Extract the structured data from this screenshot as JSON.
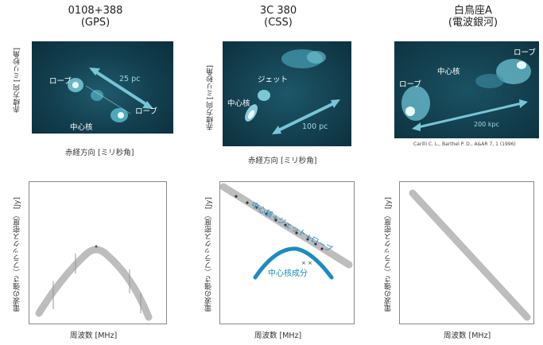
{
  "col1": {
    "name": "0108+388",
    "type": "(GPS)"
  },
  "col2": {
    "name": "3C 380",
    "type": "(CSS)"
  },
  "col3": {
    "name": "白鳥座A",
    "type": "(電波銀河)"
  },
  "img1": {
    "lobe_a": "ローブ",
    "lobe_b": "ローブ",
    "core": "中心核",
    "scale": "25 pc",
    "ylabel": "赤緯方向 [ミリ秒角]",
    "xlabel": "赤経方向 [ミリ秒角]"
  },
  "img2": {
    "jet": "ジェット",
    "core": "中心核",
    "scale": "100 pc",
    "ylabel": "赤緯方向 [ミリ秒角]",
    "xlabel": "赤経方向 [ミリ秒角]"
  },
  "img3": {
    "lobe_a": "ローブ",
    "lobe_b": "ローブ",
    "core": "中心核",
    "scale": "200 kpc",
    "citation": "Carilli C. L., Barthel P. D., A&AR 7, 1 (1996)"
  },
  "plots": {
    "ylabel": "電波の強さ（フラックス密度）",
    "yunit": "[Jy]",
    "xlabel": "周波数 [MHz]",
    "plot2_total": "中心核+ジェット+ローブ",
    "plot2_core": "中心核成分"
  },
  "colors": {
    "lobe_blue": "#1c8bc0",
    "curve_gray": "#b8b8b8",
    "image_bg": "#0f3a4a"
  }
}
